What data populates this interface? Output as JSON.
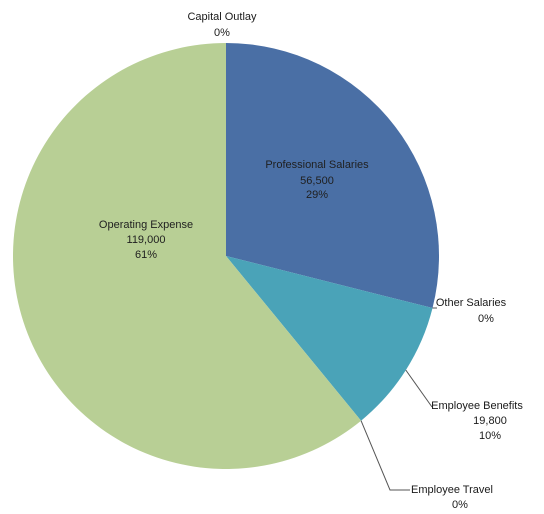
{
  "chart_data": {
    "type": "pie",
    "title": "",
    "slices": [
      {
        "name": "Professional Salaries",
        "value": 56500,
        "value_label": "56,500",
        "percent_label": "29%",
        "color": "#4a6fa5"
      },
      {
        "name": "Other Salaries",
        "value": 0,
        "value_label": "",
        "percent_label": "0%",
        "color": "#7ea2cf"
      },
      {
        "name": "Employee Benefits",
        "value": 19800,
        "value_label": "19,800",
        "percent_label": "10%",
        "color": "#4aa3b8"
      },
      {
        "name": "Employee Travel",
        "value": 0,
        "value_label": "",
        "percent_label": "0%",
        "color": "#9bbf7a"
      },
      {
        "name": "Operating Expense",
        "value": 119000,
        "value_label": "119,000",
        "percent_label": "61%",
        "color": "#b8cf95"
      },
      {
        "name": "Capital Outlay",
        "value": 0,
        "value_label": "",
        "percent_label": "0%",
        "color": "#d8d8d8"
      }
    ]
  }
}
